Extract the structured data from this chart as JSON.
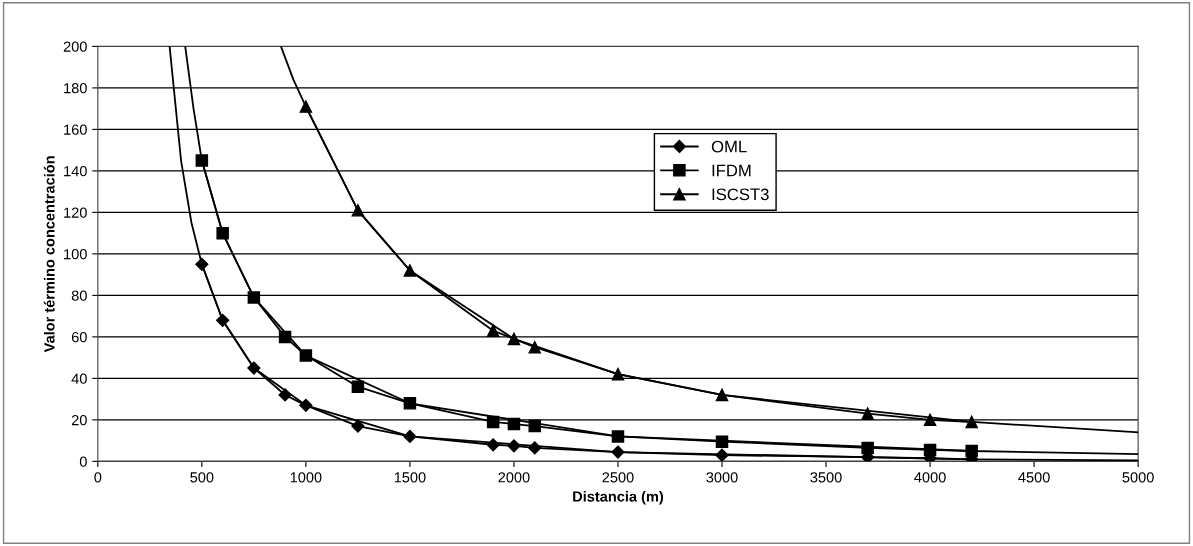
{
  "chart_data": {
    "type": "line",
    "xlabel": "Distancia (m)",
    "ylabel": "Valor término concentración",
    "xlim": [
      0,
      5000
    ],
    "xticks": [
      0,
      500,
      1000,
      1500,
      2000,
      2500,
      3000,
      3500,
      4000,
      4500,
      5000
    ],
    "ylim": [
      0,
      200
    ],
    "yticks": [
      0,
      20,
      40,
      60,
      80,
      100,
      120,
      140,
      160,
      180,
      200
    ],
    "grid": "y",
    "legend": "top right",
    "line_style": "solid",
    "series": [
      {
        "name": "OML",
        "color": "#000000",
        "marker": "diamond",
        "x": [
          500,
          600,
          750,
          900,
          1000,
          1250,
          1500,
          1900,
          2000,
          2100,
          2500,
          3000,
          3700,
          4000,
          4200
        ],
        "values": [
          95,
          68,
          45,
          32,
          27,
          17,
          12,
          8,
          7.5,
          6.5,
          4.5,
          3,
          2,
          1.5,
          1
        ]
      },
      {
        "name": "IFDM",
        "color": "#000000",
        "marker": "square",
        "x": [
          500,
          600,
          750,
          900,
          1000,
          1250,
          1500,
          1900,
          2000,
          2100,
          2500,
          3000,
          3700,
          4000,
          4200
        ],
        "values": [
          145,
          110,
          79,
          60,
          51,
          36,
          28,
          19,
          18,
          17,
          12,
          9.5,
          6.5,
          5.5,
          5
        ]
      },
      {
        "name": "ISCST3",
        "color": "#000000",
        "marker": "triangle",
        "x": [
          1000,
          1250,
          1500,
          1900,
          2000,
          2100,
          2500,
          3000,
          3700,
          4000,
          4200
        ],
        "values": [
          171,
          121,
          92,
          63,
          59,
          55,
          42,
          32,
          23,
          20,
          19
        ]
      },
      {
        "type": "line",
        "color": "#000000",
        "marker": "none",
        "x": [
          345,
          400,
          450,
          500,
          600,
          750,
          1000,
          1500,
          2500,
          4200,
          5000
        ],
        "values": [
          200,
          145,
          115,
          95,
          68,
          45,
          27,
          12,
          4.5,
          1,
          0.5
        ]
      },
      {
        "type": "line",
        "color": "#000000",
        "marker": "none",
        "x": [
          420,
          460,
          500,
          600,
          750,
          1000,
          1500,
          2500,
          4200,
          5000
        ],
        "values": [
          200,
          170,
          145,
          110,
          79,
          51,
          28,
          12,
          5,
          3.5
        ]
      },
      {
        "type": "line",
        "color": "#000000",
        "marker": "none",
        "x": [
          880,
          940,
          1000,
          1250,
          1500,
          2000,
          2500,
          3000,
          4200,
          5000
        ],
        "values": [
          200,
          184,
          171,
          121,
          92,
          59,
          42,
          32,
          19,
          14
        ]
      }
    ]
  }
}
